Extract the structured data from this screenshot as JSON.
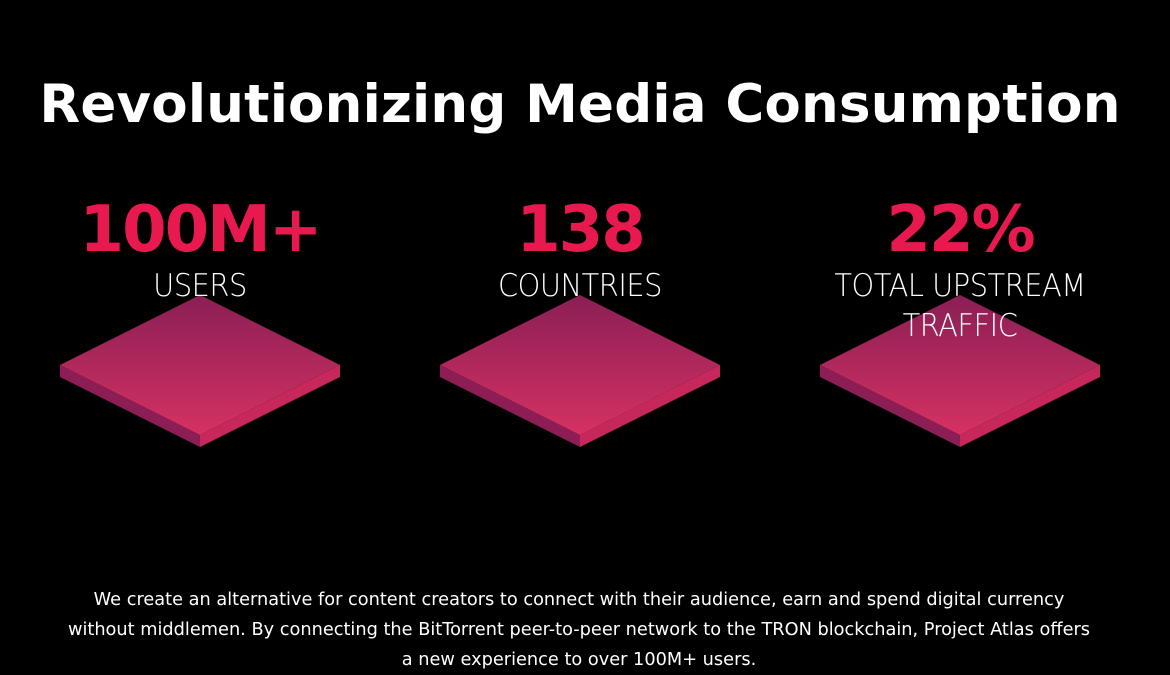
{
  "title": "Revolutionizing Media Consumption",
  "stats": [
    {
      "value": "100M+",
      "label": "USERS"
    },
    {
      "value": "138",
      "label": "COUNTRIES"
    },
    {
      "value": "22%",
      "label": "TOTAL UPSTREAM TRAFFIC"
    }
  ],
  "description": "We create an alternative for content creators to connect with their audience, earn and spend digital currency without middlemen. By connecting the BitTorrent peer-to-peer network to the TRON blockchain, Project Atlas offers a new experience to over 100M+ users.",
  "colors": {
    "background": "#000000",
    "accent": "#e8194f",
    "tile_top_dark": "#8a1f55",
    "tile_top_light": "#d63162",
    "tile_side_left": "#8c1d55",
    "tile_side_right": "#c7285c",
    "text": "#ffffff"
  }
}
